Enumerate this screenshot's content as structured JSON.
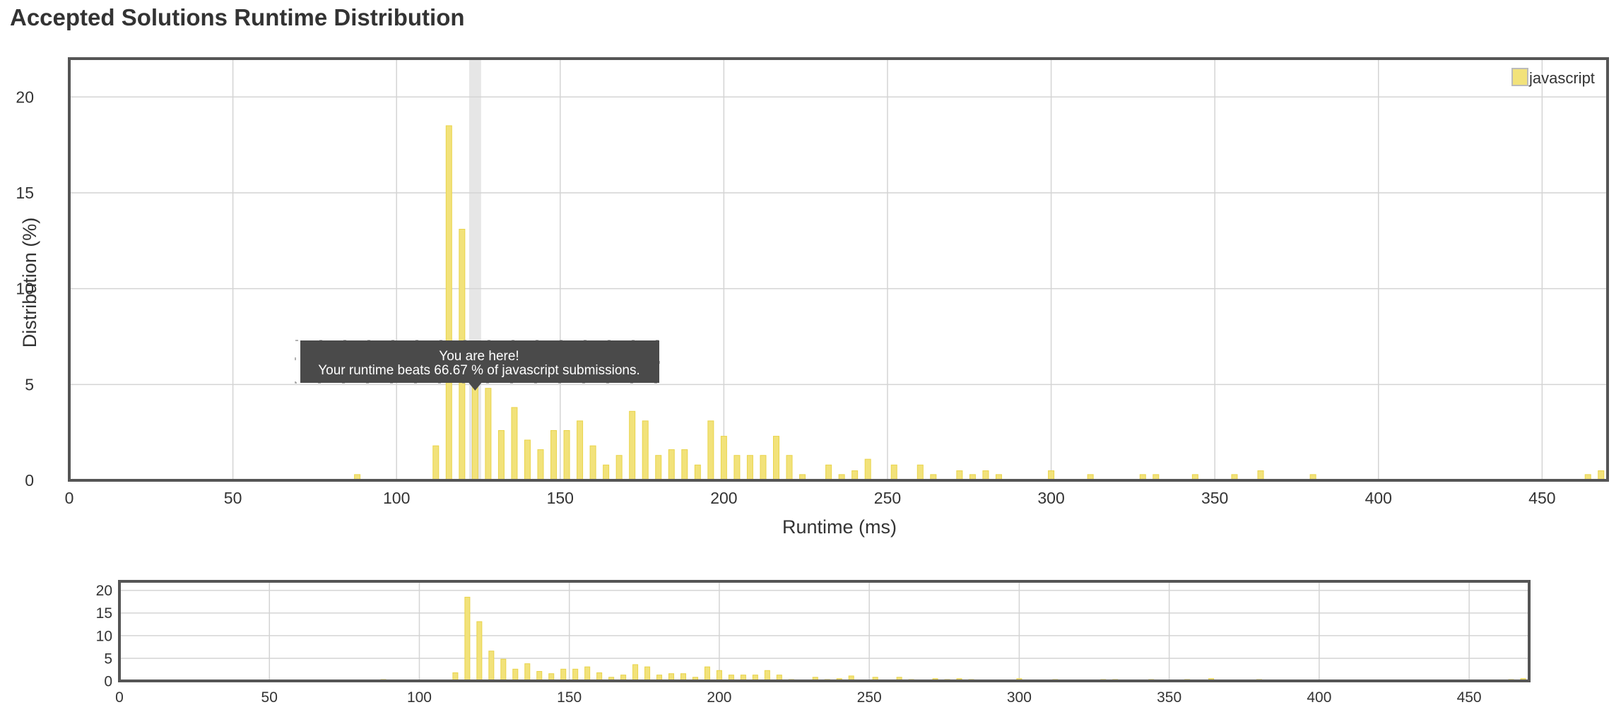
{
  "page": {
    "title": "Accepted Solutions Runtime Distribution"
  },
  "colors": {
    "bar_fill": "#f2e27a",
    "bar_stroke": "#e9d44b",
    "highlight": "#e6e6e6",
    "grid": "#d4d4d4",
    "frame": "#555555",
    "tooltip_bg": "#4a4a4a",
    "tooltip_text": "#ffffff"
  },
  "tooltip": {
    "line1": "You are here!",
    "line2": "Your runtime beats 66.67 % of javascript submissions.",
    "at_runtime": 124
  },
  "chart_data": [
    {
      "type": "bar",
      "role": "main",
      "xlabel": "Runtime (ms)",
      "ylabel": "Distribution (%)",
      "xlim": [
        0,
        470
      ],
      "ylim": [
        0,
        22
      ],
      "xticks": [
        0,
        50,
        100,
        150,
        200,
        250,
        300,
        350,
        400,
        450
      ],
      "yticks": [
        0,
        5,
        10,
        15,
        20
      ],
      "grid": true,
      "legend": {
        "position": "top-right",
        "entries": [
          "javascript"
        ]
      },
      "highlight_x": 124,
      "series": [
        {
          "name": "javascript",
          "x": [
            88,
            112,
            116,
            120,
            124,
            128,
            132,
            136,
            140,
            144,
            148,
            152,
            156,
            160,
            164,
            168,
            172,
            176,
            180,
            184,
            188,
            192,
            196,
            200,
            204,
            208,
            212,
            216,
            220,
            224,
            232,
            236,
            240,
            244,
            252,
            260,
            264,
            272,
            276,
            280,
            284,
            300,
            312,
            328,
            332,
            344,
            356,
            364,
            380,
            464,
            468
          ],
          "values": [
            0.3,
            1.8,
            18.5,
            13.1,
            6.6,
            4.8,
            2.6,
            3.8,
            2.1,
            1.6,
            2.6,
            2.6,
            3.1,
            1.8,
            0.8,
            1.3,
            3.6,
            3.1,
            1.3,
            1.6,
            1.6,
            0.8,
            3.1,
            2.3,
            1.3,
            1.3,
            1.3,
            2.3,
            1.3,
            0.3,
            0.8,
            0.3,
            0.5,
            1.1,
            0.8,
            0.8,
            0.3,
            0.5,
            0.3,
            0.5,
            0.3,
            0.5,
            0.3,
            0.3,
            0.3,
            0.3,
            0.3,
            0.5,
            0.3,
            0.3,
            0.5
          ]
        }
      ]
    },
    {
      "type": "bar",
      "role": "overview",
      "xlim": [
        0,
        470
      ],
      "ylim": [
        0,
        22
      ],
      "xticks": [
        0,
        50,
        100,
        150,
        200,
        250,
        300,
        350,
        400,
        450
      ],
      "yticks": [
        0,
        5,
        10,
        15,
        20
      ],
      "grid": true,
      "series": [
        {
          "name": "javascript",
          "x": [
            88,
            112,
            116,
            120,
            124,
            128,
            132,
            136,
            140,
            144,
            148,
            152,
            156,
            160,
            164,
            168,
            172,
            176,
            180,
            184,
            188,
            192,
            196,
            200,
            204,
            208,
            212,
            216,
            220,
            224,
            232,
            236,
            240,
            244,
            252,
            260,
            264,
            272,
            276,
            280,
            284,
            300,
            312,
            328,
            332,
            344,
            356,
            364,
            380,
            464,
            468
          ],
          "values": [
            0.3,
            1.8,
            18.5,
            13.1,
            6.6,
            4.8,
            2.6,
            3.8,
            2.1,
            1.6,
            2.6,
            2.6,
            3.1,
            1.8,
            0.8,
            1.3,
            3.6,
            3.1,
            1.3,
            1.6,
            1.6,
            0.8,
            3.1,
            2.3,
            1.3,
            1.3,
            1.3,
            2.3,
            1.3,
            0.3,
            0.8,
            0.3,
            0.5,
            1.1,
            0.8,
            0.8,
            0.3,
            0.5,
            0.3,
            0.5,
            0.3,
            0.5,
            0.3,
            0.3,
            0.3,
            0.3,
            0.3,
            0.5,
            0.3,
            0.3,
            0.5
          ]
        }
      ]
    }
  ]
}
